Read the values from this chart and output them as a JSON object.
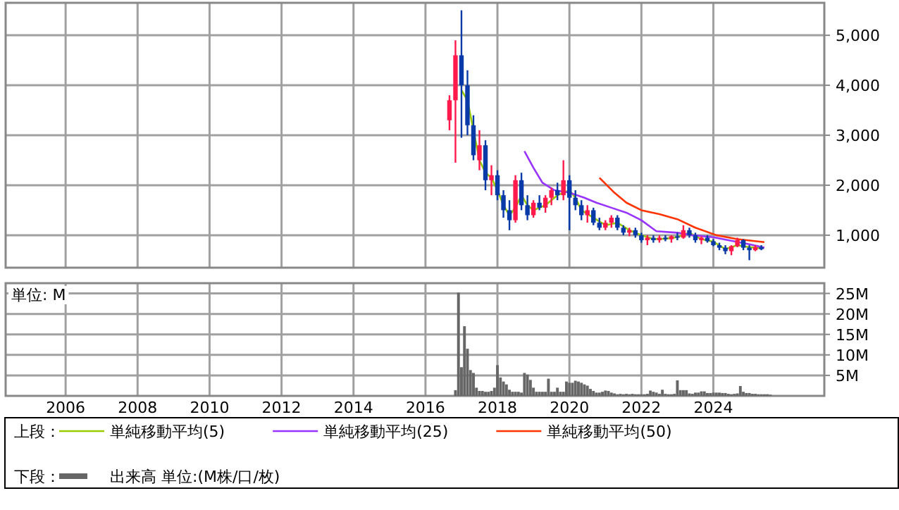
{
  "chart_data": [
    {
      "type": "candlestick",
      "legend": "bottom",
      "legend_title": "上段：",
      "grid": true,
      "tick_labels": "y",
      "xlim": [
        "2004-05",
        "2027-02"
      ],
      "xticks": [
        "2006",
        "2008",
        "2010",
        "2012",
        "2014",
        "2016",
        "2018",
        "2020",
        "2022",
        "2024"
      ],
      "ylim": [
        350,
        5650
      ],
      "yticks": [
        {
          "value": 1000,
          "label": "1,000"
        },
        {
          "value": 2000,
          "label": "2,000"
        },
        {
          "value": 3000,
          "label": "3,000"
        },
        {
          "value": 4000,
          "label": "4,000"
        },
        {
          "value": 5000,
          "label": "5,000"
        }
      ],
      "x": [
        "2016-09",
        "2016-11",
        "2017-01",
        "2017-03",
        "2017-05",
        "2017-07",
        "2017-09",
        "2017-11",
        "2018-01",
        "2018-03",
        "2018-05",
        "2018-07",
        "2018-09",
        "2018-11",
        "2019-01",
        "2019-03",
        "2019-05",
        "2019-07",
        "2019-09",
        "2019-11",
        "2020-01",
        "2020-03",
        "2020-05",
        "2020-07",
        "2020-09",
        "2020-11",
        "2021-01",
        "2021-03",
        "2021-05",
        "2021-07",
        "2021-09",
        "2021-11",
        "2022-01",
        "2022-03",
        "2022-05",
        "2022-07",
        "2022-09",
        "2022-11",
        "2023-01",
        "2023-03",
        "2023-05",
        "2023-07",
        "2023-09",
        "2023-11",
        "2024-01",
        "2024-03",
        "2024-05",
        "2024-07",
        "2024-09",
        "2024-11",
        "2025-01",
        "2025-03",
        "2025-05"
      ],
      "ohlc": [
        [
          3300,
          3800,
          3100,
          3700
        ],
        [
          3700,
          4900,
          2450,
          4600
        ],
        [
          4600,
          5500,
          2950,
          4000
        ],
        [
          4000,
          4300,
          3000,
          3200
        ],
        [
          3200,
          3400,
          2500,
          2600
        ],
        [
          2500,
          3100,
          2300,
          2800
        ],
        [
          2800,
          2900,
          1900,
          2100
        ],
        [
          2100,
          2400,
          1800,
          2200
        ],
        [
          2200,
          2300,
          1700,
          1800
        ],
        [
          1800,
          1900,
          1350,
          1500
        ],
        [
          1500,
          1700,
          1100,
          1300
        ],
        [
          1300,
          2200,
          1250,
          2100
        ],
        [
          2100,
          2250,
          1500,
          1600
        ],
        [
          1600,
          1800,
          1300,
          1400
        ],
        [
          1400,
          1700,
          1350,
          1650
        ],
        [
          1650,
          1800,
          1500,
          1550
        ],
        [
          1550,
          1800,
          1450,
          1750
        ],
        [
          1750,
          1950,
          1600,
          1900
        ],
        [
          1900,
          2050,
          1700,
          1800
        ],
        [
          1800,
          2500,
          1700,
          2100
        ],
        [
          2100,
          2200,
          1100,
          1750
        ],
        [
          1750,
          1900,
          1500,
          1600
        ],
        [
          1600,
          1700,
          1300,
          1400
        ],
        [
          1400,
          1600,
          1250,
          1500
        ],
        [
          1500,
          1550,
          1200,
          1250
        ],
        [
          1250,
          1350,
          1100,
          1150
        ],
        [
          1150,
          1300,
          1100,
          1250
        ],
        [
          1250,
          1400,
          1150,
          1350
        ],
        [
          1350,
          1400,
          1100,
          1150
        ],
        [
          1150,
          1200,
          1000,
          1050
        ],
        [
          1050,
          1150,
          980,
          1100
        ],
        [
          1100,
          1150,
          950,
          1000
        ],
        [
          1000,
          1050,
          850,
          900
        ],
        [
          900,
          1000,
          800,
          950
        ],
        [
          950,
          1000,
          850,
          900
        ],
        [
          900,
          1000,
          850,
          950
        ],
        [
          950,
          1000,
          880,
          920
        ],
        [
          920,
          1000,
          850,
          980
        ],
        [
          980,
          1050,
          900,
          950
        ],
        [
          950,
          1200,
          930,
          1100
        ],
        [
          1100,
          1150,
          950,
          1000
        ],
        [
          1000,
          1050,
          850,
          900
        ],
        [
          900,
          980,
          820,
          950
        ],
        [
          950,
          1000,
          850,
          880
        ],
        [
          880,
          920,
          780,
          800
        ],
        [
          800,
          850,
          700,
          750
        ],
        [
          750,
          800,
          620,
          680
        ],
        [
          680,
          800,
          600,
          780
        ],
        [
          780,
          950,
          760,
          900
        ],
        [
          900,
          920,
          700,
          750
        ],
        [
          750,
          800,
          500,
          700
        ],
        [
          700,
          800,
          680,
          760
        ],
        [
          760,
          800,
          700,
          720
        ]
      ],
      "colors": [
        "#ff1a4b",
        "#ff1a4b",
        "#0a3aa8",
        "#0a3aa8",
        "#0a3aa8",
        "#ff1a4b",
        "#0a3aa8",
        "#ff1a4b",
        "#0a3aa8",
        "#0a3aa8",
        "#0a3aa8",
        "#ff1a4b",
        "#0a3aa8",
        "#0a3aa8",
        "#ff1a4b",
        "#0a3aa8",
        "#ff1a4b",
        "#ff1a4b",
        "#0a3aa8",
        "#ff1a4b",
        "#0a3aa8",
        "#0a3aa8",
        "#0a3aa8",
        "#ff1a4b",
        "#0a3aa8",
        "#0a3aa8",
        "#ff1a4b",
        "#ff1a4b",
        "#0a3aa8",
        "#0a3aa8",
        "#ff1a4b",
        "#0a3aa8",
        "#0a3aa8",
        "#ff1a4b",
        "#0a3aa8",
        "#ff1a4b",
        "#0a3aa8",
        "#ff1a4b",
        "#0a3aa8",
        "#ff1a4b",
        "#0a3aa8",
        "#0a3aa8",
        "#ff1a4b",
        "#0a3aa8",
        "#0a3aa8",
        "#0a3aa8",
        "#0a3aa8",
        "#ff1a4b",
        "#ff1a4b",
        "#0a3aa8",
        "#0a3aa8",
        "#ff1a4b",
        "#0a3aa8"
      ],
      "series": [
        {
          "type": "line",
          "name": "単純移動平均(5)",
          "color": "#99cc00",
          "x": [
            "2017-01",
            "2017-03",
            "2017-05",
            "2017-07",
            "2017-09",
            "2017-11",
            "2018-01",
            "2018-03",
            "2018-05",
            "2018-07",
            "2018-09",
            "2018-11",
            "2019-01",
            "2019-05",
            "2019-09",
            "2019-11",
            "2020-01",
            "2020-03",
            "2020-05",
            "2020-09",
            "2021-01",
            "2021-05",
            "2021-09",
            "2022-01",
            "2022-05",
            "2022-09",
            "2023-01",
            "2023-05",
            "2023-09",
            "2024-01",
            "2024-05",
            "2024-09",
            "2025-01",
            "2025-05"
          ],
          "values": [
            3900,
            3700,
            3100,
            2500,
            2250,
            2150,
            1900,
            1600,
            1400,
            1550,
            1800,
            1600,
            1500,
            1600,
            1800,
            1850,
            1900,
            1750,
            1500,
            1350,
            1200,
            1250,
            1100,
            1000,
            920,
            930,
            960,
            1050,
            920,
            870,
            720,
            800,
            760,
            740
          ]
        },
        {
          "type": "line",
          "name": "単純移動平均(25)",
          "color": "#9933ff",
          "x": [
            "2018-10",
            "2019-01",
            "2019-04",
            "2019-08",
            "2020-01",
            "2020-06",
            "2020-10",
            "2021-03",
            "2021-08",
            "2022-01",
            "2022-06",
            "2023-01",
            "2023-06",
            "2024-01",
            "2024-06",
            "2025-01",
            "2025-06"
          ],
          "values": [
            2680,
            2350,
            2050,
            1900,
            1850,
            1750,
            1650,
            1550,
            1450,
            1300,
            1080,
            1050,
            1000,
            960,
            900,
            820,
            750
          ]
        },
        {
          "type": "line",
          "name": "単純移動平均(50)",
          "color": "#ff3300",
          "x": [
            "2020-11",
            "2021-04",
            "2021-08",
            "2022-01",
            "2022-07",
            "2023-01",
            "2023-07",
            "2024-02",
            "2024-09",
            "2025-06"
          ],
          "values": [
            2150,
            1850,
            1650,
            1500,
            1420,
            1320,
            1150,
            1000,
            920,
            860
          ]
        }
      ]
    },
    {
      "type": "bar",
      "legend": "bottom",
      "legend_title": "下段：",
      "grid": true,
      "annotations": [
        "単位: M"
      ],
      "xlim": [
        "2004-05",
        "2027-02"
      ],
      "xticks": [
        "2006",
        "2008",
        "2010",
        "2012",
        "2014",
        "2016",
        "2018",
        "2020",
        "2022",
        "2024"
      ],
      "ylim": [
        0,
        27.5
      ],
      "yticks": [
        {
          "value": 5,
          "label": "5M"
        },
        {
          "value": 10,
          "label": "10M"
        },
        {
          "value": 15,
          "label": "15M"
        },
        {
          "value": 20,
          "label": "20M"
        },
        {
          "value": 25,
          "label": "25M"
        }
      ],
      "series": [
        {
          "name": "出来高 単位:(M株/口/枚)",
          "color": "#666666",
          "x": [
            "2016-11",
            "2016-12",
            "2017-01",
            "2017-02",
            "2017-03",
            "2017-04",
            "2017-05",
            "2017-06",
            "2017-07",
            "2017-08",
            "2017-09",
            "2017-10",
            "2017-11",
            "2017-12",
            "2018-01",
            "2018-02",
            "2018-03",
            "2018-04",
            "2018-05",
            "2018-06",
            "2018-07",
            "2018-08",
            "2018-09",
            "2018-10",
            "2018-11",
            "2018-12",
            "2019-01",
            "2019-02",
            "2019-03",
            "2019-04",
            "2019-05",
            "2019-06",
            "2019-07",
            "2019-08",
            "2019-09",
            "2019-10",
            "2019-11",
            "2019-12",
            "2020-01",
            "2020-02",
            "2020-03",
            "2020-04",
            "2020-05",
            "2020-06",
            "2020-07",
            "2020-08",
            "2020-09",
            "2020-10",
            "2020-11",
            "2020-12",
            "2021-01",
            "2021-02",
            "2021-03",
            "2021-04",
            "2021-05",
            "2021-06",
            "2021-07",
            "2021-08",
            "2021-09",
            "2021-10",
            "2021-11",
            "2021-12",
            "2022-01",
            "2022-02",
            "2022-03",
            "2022-04",
            "2022-05",
            "2022-06",
            "2022-07",
            "2022-08",
            "2022-09",
            "2022-10",
            "2022-11",
            "2022-12",
            "2023-01",
            "2023-02",
            "2023-03",
            "2023-04",
            "2023-05",
            "2023-06",
            "2023-07",
            "2023-08",
            "2023-09",
            "2023-10",
            "2023-11",
            "2023-12",
            "2024-01",
            "2024-02",
            "2024-03",
            "2024-04",
            "2024-05",
            "2024-06",
            "2024-07",
            "2024-08",
            "2024-09",
            "2024-10",
            "2024-11",
            "2024-12",
            "2025-01",
            "2025-02",
            "2025-03",
            "2025-04",
            "2025-05",
            "2025-06",
            "2025-07",
            "2025-08"
          ],
          "values": [
            1.4,
            25.2,
            7,
            17,
            11.5,
            6.3,
            5.6,
            2,
            1.2,
            1.2,
            1,
            1,
            1.2,
            2,
            7.5,
            4.5,
            3.5,
            2.8,
            1.5,
            1,
            1,
            1,
            0.8,
            5.6,
            5.2,
            3.9,
            2,
            1,
            1,
            1,
            1,
            4.2,
            1,
            1,
            2,
            1,
            1,
            3.5,
            3.2,
            3.2,
            3.7,
            3.5,
            3.2,
            2.8,
            2.5,
            1.7,
            1.2,
            0.8,
            0.8,
            1,
            1.3,
            1.2,
            0.8,
            0.6,
            0.4,
            0.5,
            0.4,
            0.5,
            0.4,
            0.5,
            0.4,
            0.4,
            0.4,
            0.4,
            0.5,
            1.3,
            1,
            0.8,
            0.5,
            1.5,
            0.5,
            0.4,
            0.4,
            0.5,
            3.8,
            1.4,
            1.4,
            1.4,
            0.6,
            0.5,
            0.8,
            0.8,
            1.1,
            1.1,
            0.7,
            0.7,
            0.8,
            0.8,
            0.8,
            0.7,
            0.7,
            0.5,
            0.4,
            0.5,
            0.6,
            2.4,
            1,
            0.7,
            0.7,
            0.5,
            0.5,
            0.4,
            0.4,
            0.4,
            0.4,
            0.3
          ]
        }
      ]
    }
  ]
}
